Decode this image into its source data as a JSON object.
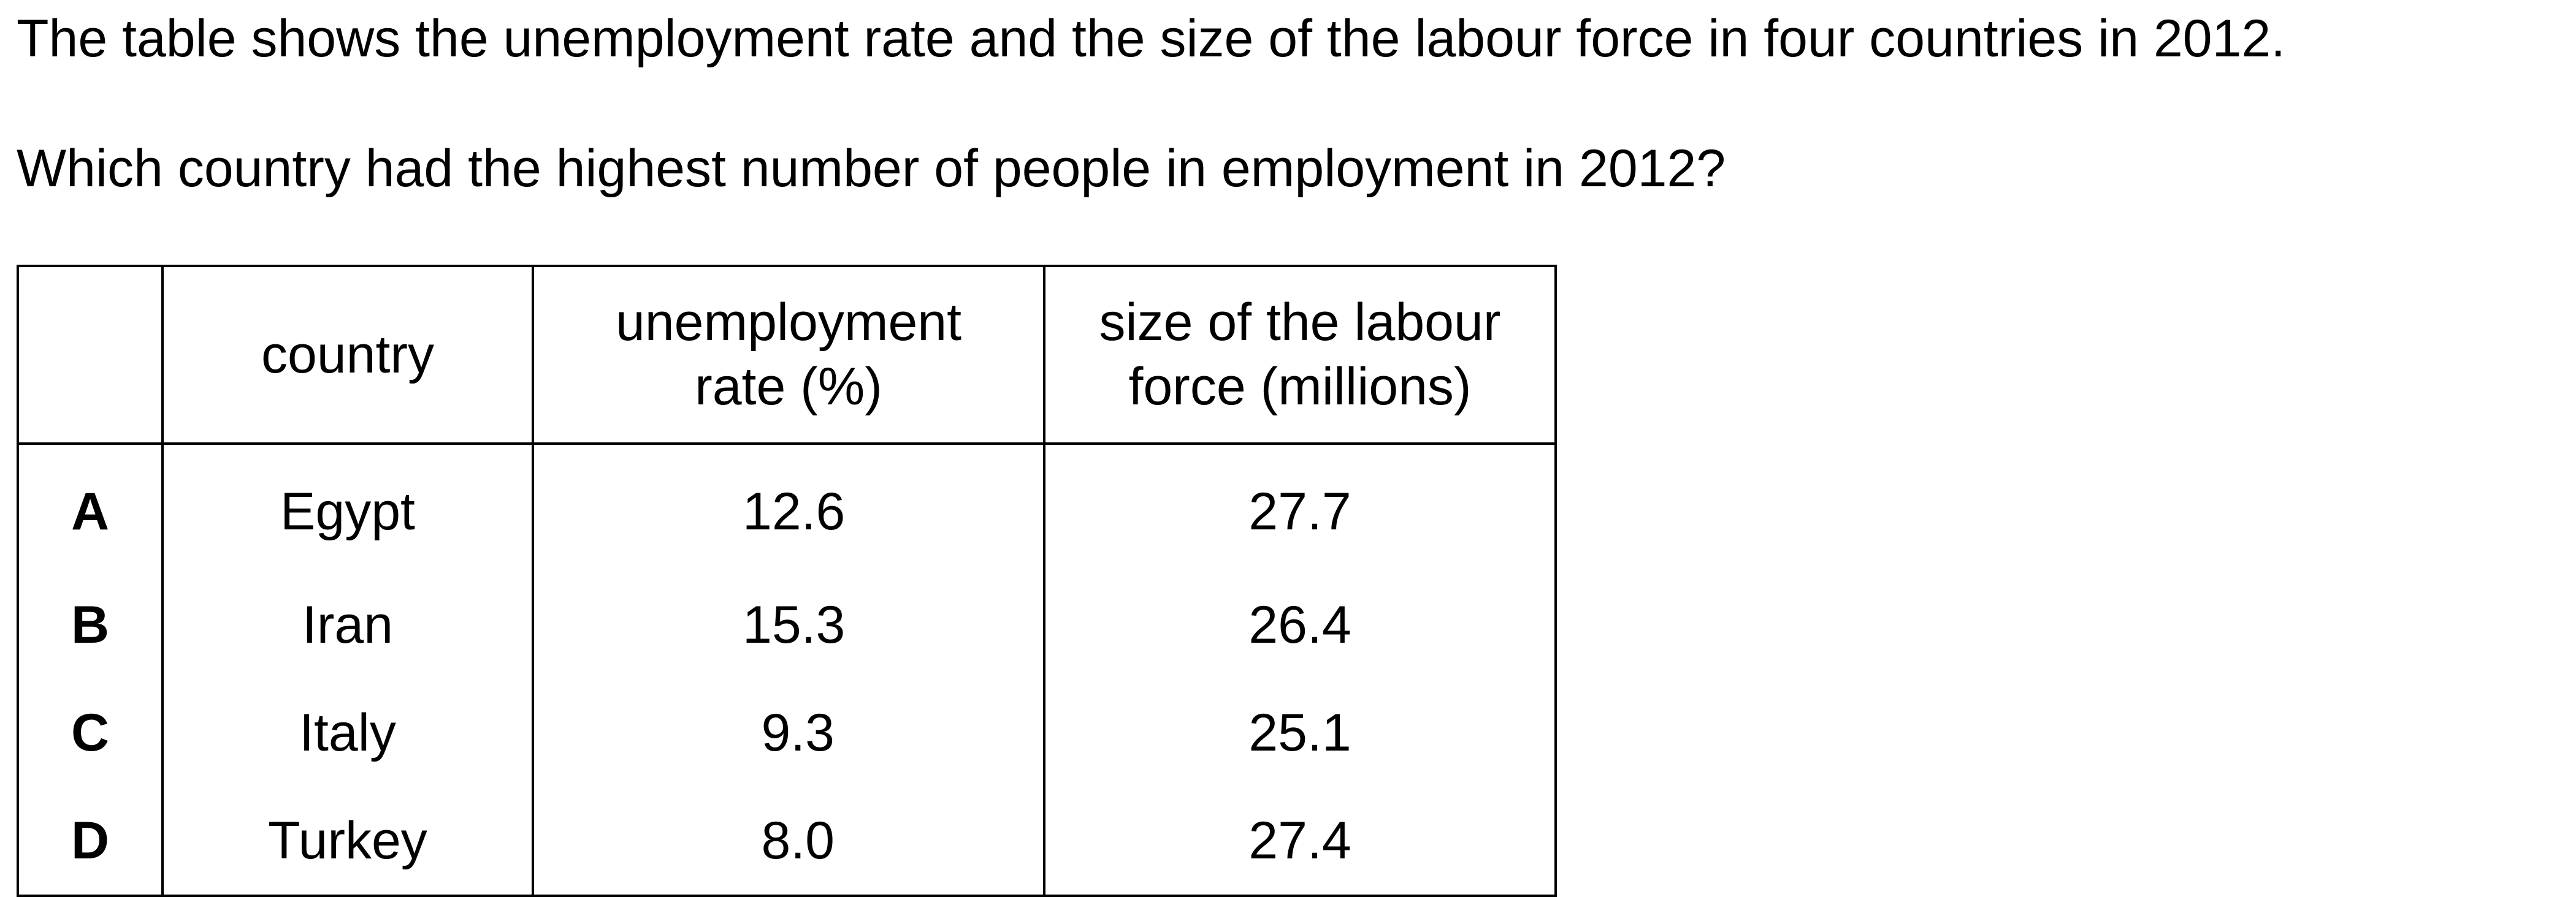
{
  "intro": "The table shows the unemployment rate and the size of the labour force in four countries in 2012.",
  "question": "Which country had the highest number of people in employment in 2012?",
  "table": {
    "headers": {
      "option": "",
      "country": "country",
      "rate_line1": "unemployment",
      "rate_line2": "rate (%)",
      "labour_line1": "size of the labour",
      "labour_line2": "force (millions)"
    },
    "rows": [
      {
        "option": "A",
        "country": "Egypt",
        "rate": "12.6",
        "labour": "27.7"
      },
      {
        "option": "B",
        "country": "Iran",
        "rate": "15.3",
        "labour": "26.4"
      },
      {
        "option": "C",
        "country": "Italy",
        "rate": "9.3",
        "labour": "25.1"
      },
      {
        "option": "D",
        "country": "Turkey",
        "rate": "8.0",
        "labour": "27.4"
      }
    ]
  }
}
